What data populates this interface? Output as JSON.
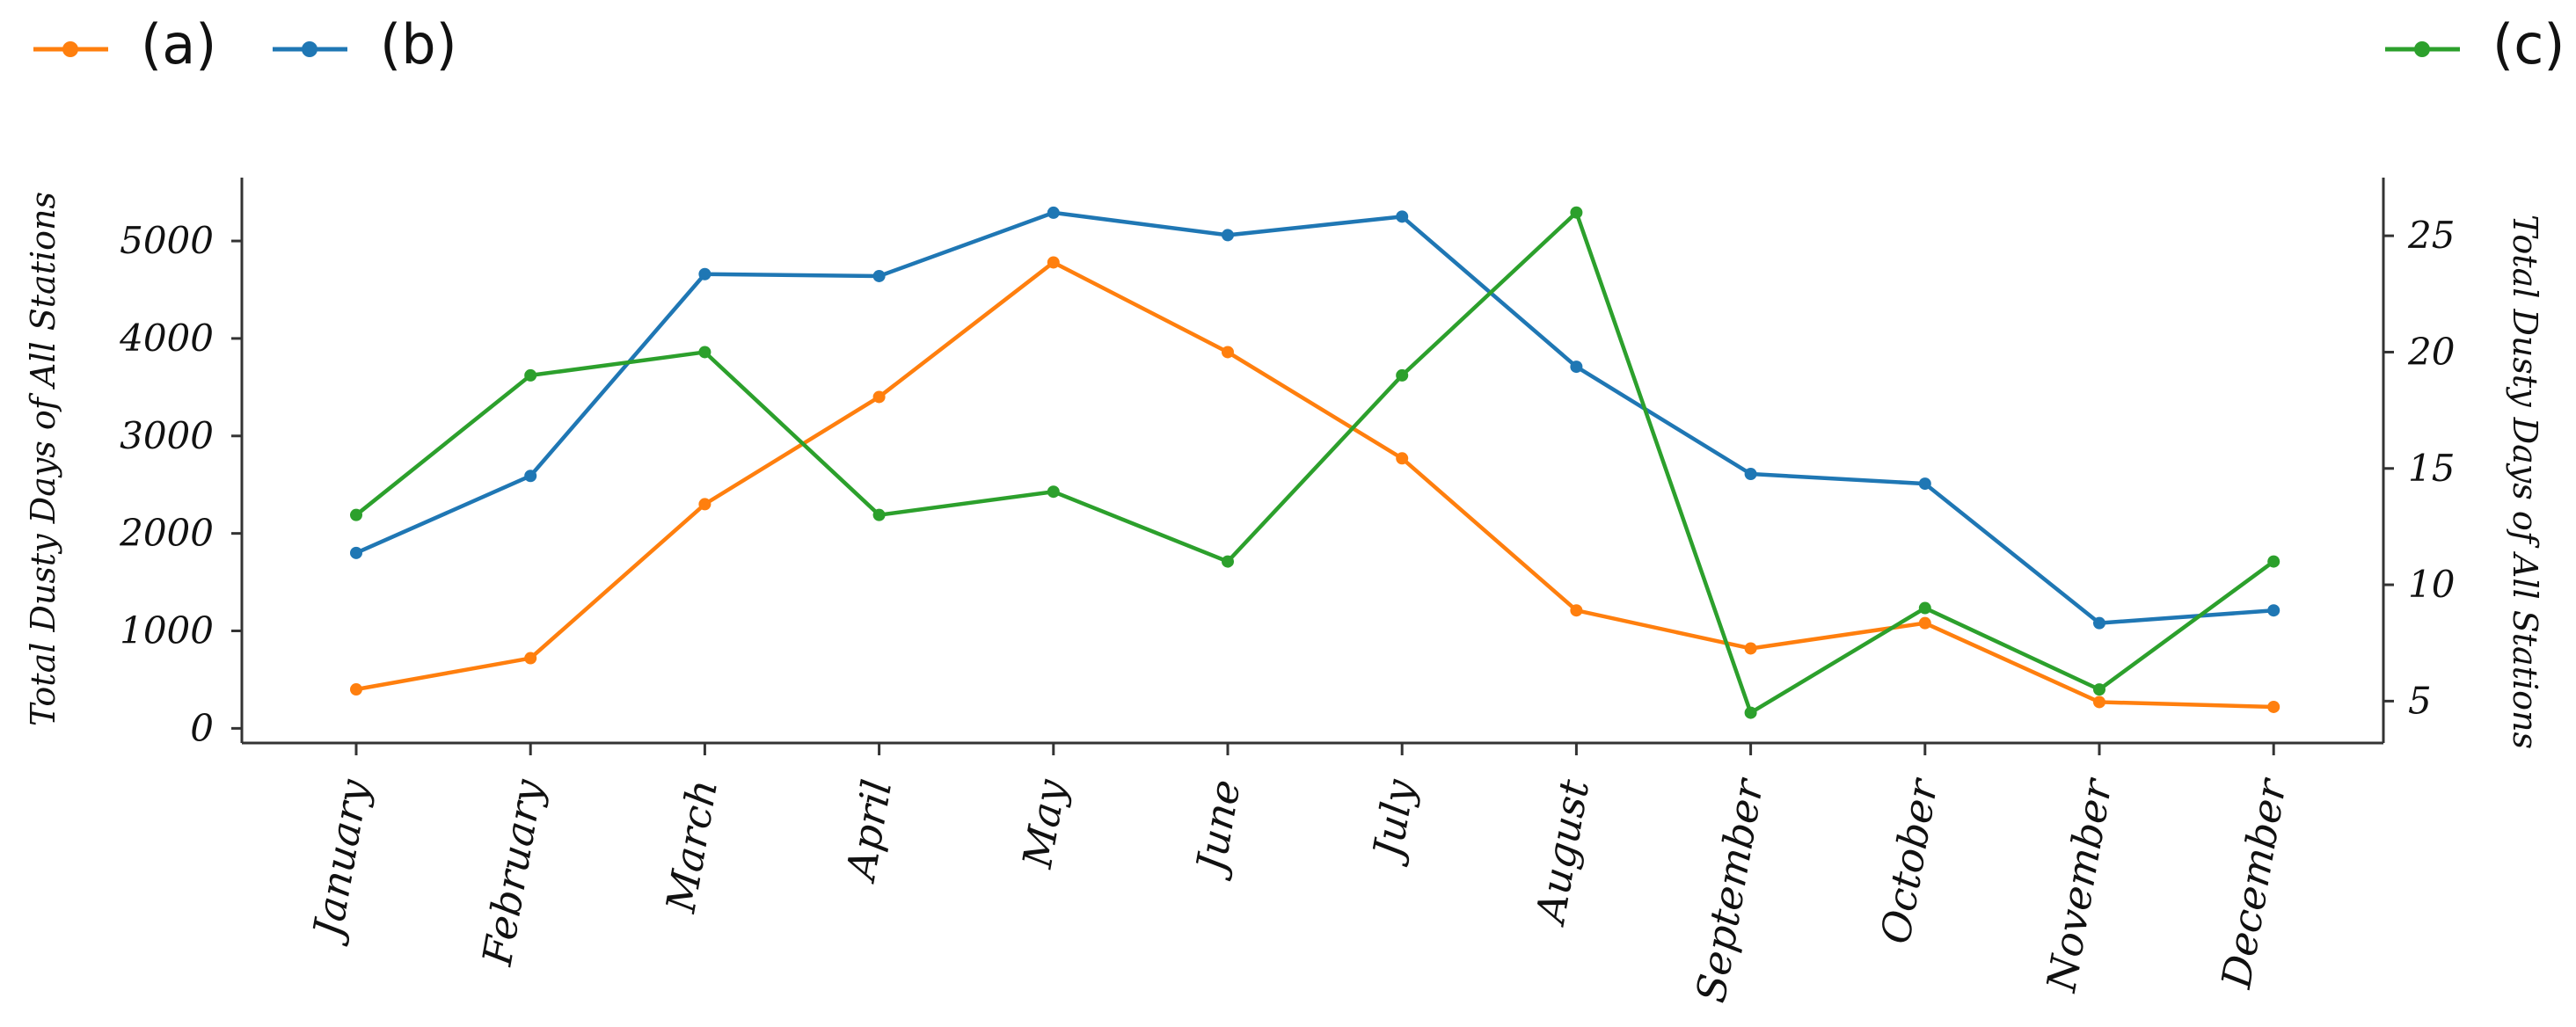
{
  "chart_data": {
    "type": "line",
    "categories": [
      "January",
      "February",
      "March",
      "April",
      "May",
      "June",
      "July",
      "August",
      "September",
      "October",
      "November",
      "December"
    ],
    "ylabel": "Total Dusty Days of All Stations",
    "y2label": "Total Dusty Days of All Stations",
    "yticks": [
      "0",
      "1000",
      "2000",
      "3000",
      "4000",
      "5000"
    ],
    "y2ticks": [
      "5",
      "10",
      "15",
      "20",
      "25"
    ],
    "ylim": [
      -150,
      5650
    ],
    "y2lim": [
      3.2,
      27.5
    ],
    "grid": false,
    "legend_left": [
      "(a)",
      "(b)"
    ],
    "legend_right": [
      "(c)"
    ],
    "series": [
      {
        "name": "(a)",
        "axis": "left",
        "color": "#ff7f0e",
        "values": [
          400,
          720,
          2300,
          3400,
          4780,
          3860,
          2770,
          1210,
          820,
          1080,
          270,
          220
        ]
      },
      {
        "name": "(b)",
        "axis": "left",
        "color": "#1f77b4",
        "values": [
          1800,
          2590,
          4660,
          4640,
          5290,
          5060,
          5250,
          3710,
          2610,
          2510,
          1080,
          1210
        ]
      },
      {
        "name": "(c)",
        "axis": "right",
        "color": "#2ca02c",
        "values": [
          13,
          19,
          20,
          13,
          14,
          11,
          19,
          26,
          4.5,
          9,
          5.5,
          11
        ]
      }
    ]
  }
}
